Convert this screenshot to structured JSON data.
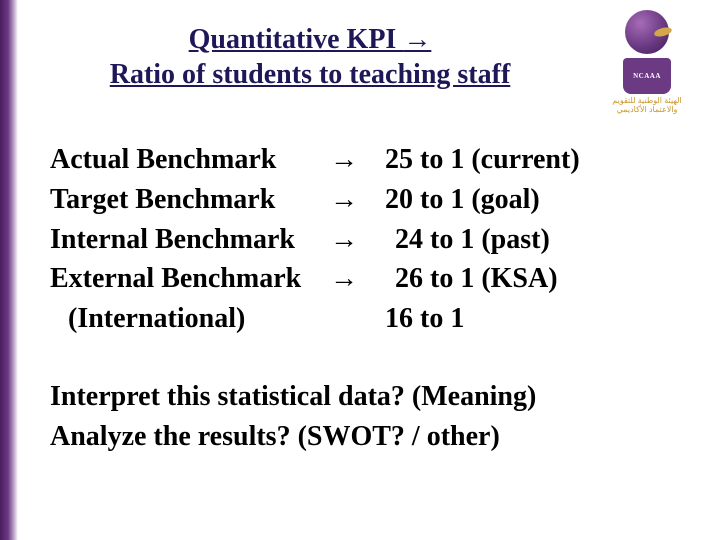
{
  "title": {
    "line1": "Quantitative KPI ",
    "arrow": "→",
    "line2": "Ratio of students to teaching staff"
  },
  "logo": {
    "badge_text": "NCAAA",
    "arabic1": "الهيئة الوطنية للتقويم",
    "arabic2": "والاعتماد الأكاديمي"
  },
  "benchmarks": [
    {
      "label": "Actual Benchmark",
      "arrow": "→",
      "value": "25 to 1 (current)",
      "indent": false,
      "valueShift": false
    },
    {
      "label": "Target Benchmark",
      "arrow": "→",
      "value": "20 to 1 (goal)",
      "indent": false,
      "valueShift": false
    },
    {
      "label": "Internal Benchmark",
      "arrow": "→",
      "value": "24 to 1 (past)",
      "indent": false,
      "valueShift": true
    },
    {
      "label": "External Benchmark",
      "arrow": "→",
      "value": "26 to 1 (KSA)",
      "indent": false,
      "valueShift": true
    },
    {
      "label": "(International)",
      "arrow": "",
      "value": "16 to 1",
      "indent": true,
      "valueShift": false
    }
  ],
  "questions": {
    "line1": "Interpret this statistical data? (Meaning)",
    "line2": "Analyze the results? (SWOT? / other)"
  },
  "colors": {
    "title_color": "#1e1858",
    "body_color": "#000000",
    "accent_start": "#4a1f5c",
    "accent_mid": "#6b3a82",
    "logo_gold": "#c9972e"
  }
}
